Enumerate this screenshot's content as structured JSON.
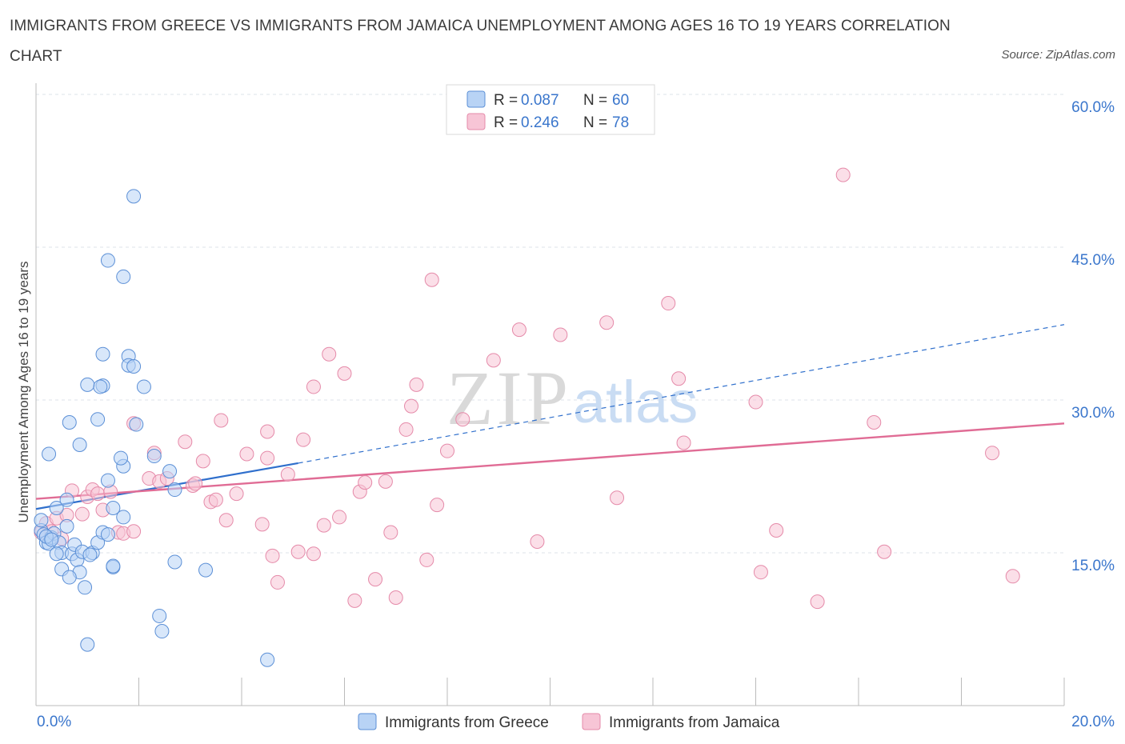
{
  "title": "IMMIGRANTS FROM GREECE VS IMMIGRANTS FROM JAMAICA UNEMPLOYMENT AMONG AGES 16 TO 19 YEARS CORRELATION CHART",
  "source": "Source: ZipAtlas.com",
  "watermark": {
    "zip": "ZIP",
    "atlas": "atlas"
  },
  "colors": {
    "greece_fill": "#b8d3f5",
    "greece_stroke": "#5b8fd6",
    "greece_line": "#2f6fcc",
    "jamaica_fill": "#f7c5d6",
    "jamaica_stroke": "#e58aa9",
    "jamaica_line": "#e06c95",
    "axis_text": "#3a76cc",
    "grid": "#dde3ea"
  },
  "chart_data": {
    "type": "scatter",
    "title": "IMMIGRANTS FROM GREECE VS IMMIGRANTS FROM JAMAICA UNEMPLOYMENT AMONG AGES 16 TO 19 YEARS CORRELATION CHART",
    "xlabel": "",
    "ylabel": "Unemployment Among Ages 16 to 19 years",
    "xlim": [
      0,
      20
    ],
    "ylim": [
      0,
      60
    ],
    "x_tick_labels": [
      "0.0%",
      "20.0%"
    ],
    "y_ticks": [
      15,
      30,
      45,
      60
    ],
    "y_tick_labels": [
      "15.0%",
      "30.0%",
      "45.0%",
      "60.0%"
    ],
    "legend_position": "top-center",
    "legend": [
      {
        "r_label": "R =",
        "r_value": "0.087",
        "n_label": "N =",
        "n_value": "60"
      },
      {
        "r_label": "R =",
        "r_value": "0.246",
        "n_label": "N =",
        "n_value": "78"
      }
    ],
    "bottom_legend": [
      "Immigrants from Greece",
      "Immigrants from Jamaica"
    ],
    "series": [
      {
        "name": "Immigrants from Greece",
        "trend": {
          "x0": 0,
          "y0": 19.3,
          "x1": 5.1,
          "y1": 23.8,
          "dashed_to_x": 20,
          "dashed_to_y": 37.4
        },
        "points": [
          [
            0.1,
            17.2
          ],
          [
            0.15,
            16.8
          ],
          [
            0.2,
            16.0
          ],
          [
            0.25,
            15.9
          ],
          [
            0.1,
            18.2
          ],
          [
            0.3,
            16.5
          ],
          [
            0.35,
            16.9
          ],
          [
            0.2,
            16.6
          ],
          [
            0.4,
            19.4
          ],
          [
            0.45,
            16.0
          ],
          [
            0.5,
            15.0
          ],
          [
            0.6,
            20.2
          ],
          [
            0.6,
            17.6
          ],
          [
            0.7,
            14.9
          ],
          [
            0.75,
            15.8
          ],
          [
            0.8,
            14.3
          ],
          [
            0.85,
            13.1
          ],
          [
            0.9,
            15.1
          ],
          [
            0.5,
            13.4
          ],
          [
            0.4,
            14.9
          ],
          [
            0.65,
            12.6
          ],
          [
            0.95,
            11.6
          ],
          [
            1.1,
            15.0
          ],
          [
            1.2,
            16.0
          ],
          [
            1.3,
            17.0
          ],
          [
            1.4,
            16.8
          ],
          [
            1.5,
            13.6
          ],
          [
            1.5,
            13.7
          ],
          [
            1.7,
            18.5
          ],
          [
            1.7,
            23.5
          ],
          [
            1.65,
            24.3
          ],
          [
            1.5,
            19.4
          ],
          [
            1.4,
            22.1
          ],
          [
            1.2,
            28.1
          ],
          [
            1.3,
            31.4
          ],
          [
            1.25,
            31.3
          ],
          [
            1.0,
            31.5
          ],
          [
            0.85,
            25.6
          ],
          [
            0.65,
            27.8
          ],
          [
            0.25,
            24.7
          ],
          [
            1.3,
            34.5
          ],
          [
            1.8,
            34.3
          ],
          [
            1.8,
            33.4
          ],
          [
            1.9,
            33.3
          ],
          [
            2.1,
            31.3
          ],
          [
            1.95,
            27.6
          ],
          [
            2.3,
            24.5
          ],
          [
            2.6,
            23.0
          ],
          [
            2.7,
            21.2
          ],
          [
            2.7,
            14.1
          ],
          [
            3.3,
            13.3
          ],
          [
            2.4,
            8.8
          ],
          [
            2.45,
            7.3
          ],
          [
            1.0,
            6.0
          ],
          [
            4.5,
            4.5
          ],
          [
            1.4,
            43.7
          ],
          [
            1.7,
            42.1
          ],
          [
            1.9,
            50.0
          ],
          [
            0.3,
            16.3
          ],
          [
            1.05,
            14.8
          ]
        ]
      },
      {
        "name": "Immigrants from Jamaica",
        "trend": {
          "x0": 0,
          "y0": 20.3,
          "x1": 20,
          "y1": 27.7
        },
        "points": [
          [
            0.1,
            17.0
          ],
          [
            0.2,
            17.9
          ],
          [
            0.3,
            17.1
          ],
          [
            0.4,
            18.4
          ],
          [
            0.5,
            16.4
          ],
          [
            0.6,
            18.7
          ],
          [
            0.7,
            21.1
          ],
          [
            0.9,
            18.8
          ],
          [
            1.0,
            20.5
          ],
          [
            1.1,
            21.2
          ],
          [
            1.2,
            20.8
          ],
          [
            1.3,
            19.2
          ],
          [
            1.45,
            21.0
          ],
          [
            1.6,
            17.0
          ],
          [
            1.7,
            16.9
          ],
          [
            1.9,
            17.1
          ],
          [
            1.9,
            27.7
          ],
          [
            2.2,
            22.3
          ],
          [
            2.3,
            24.8
          ],
          [
            2.4,
            22.0
          ],
          [
            2.55,
            22.3
          ],
          [
            2.9,
            25.9
          ],
          [
            3.05,
            21.6
          ],
          [
            3.1,
            21.8
          ],
          [
            3.25,
            24.0
          ],
          [
            3.4,
            20.0
          ],
          [
            3.5,
            20.2
          ],
          [
            3.6,
            28.0
          ],
          [
            3.7,
            18.2
          ],
          [
            3.9,
            20.8
          ],
          [
            4.1,
            24.7
          ],
          [
            4.4,
            17.8
          ],
          [
            4.5,
            24.3
          ],
          [
            4.5,
            26.9
          ],
          [
            4.6,
            14.7
          ],
          [
            4.7,
            12.1
          ],
          [
            4.9,
            22.7
          ],
          [
            5.1,
            15.1
          ],
          [
            5.2,
            26.1
          ],
          [
            5.4,
            31.3
          ],
          [
            5.4,
            14.9
          ],
          [
            5.6,
            17.7
          ],
          [
            5.7,
            34.5
          ],
          [
            5.9,
            18.5
          ],
          [
            6.0,
            32.6
          ],
          [
            6.2,
            10.3
          ],
          [
            6.3,
            21.0
          ],
          [
            6.4,
            21.9
          ],
          [
            6.6,
            12.4
          ],
          [
            6.8,
            22.0
          ],
          [
            6.9,
            17.0
          ],
          [
            7.0,
            10.6
          ],
          [
            7.2,
            27.1
          ],
          [
            7.3,
            29.4
          ],
          [
            7.4,
            31.5
          ],
          [
            7.6,
            14.3
          ],
          [
            7.7,
            41.8
          ],
          [
            7.8,
            19.7
          ],
          [
            8.0,
            25.0
          ],
          [
            8.3,
            28.1
          ],
          [
            8.9,
            33.9
          ],
          [
            9.4,
            36.9
          ],
          [
            9.75,
            16.1
          ],
          [
            10.2,
            36.4
          ],
          [
            11.1,
            37.6
          ],
          [
            11.3,
            20.4
          ],
          [
            12.3,
            39.5
          ],
          [
            12.5,
            32.1
          ],
          [
            12.6,
            25.8
          ],
          [
            14.0,
            29.8
          ],
          [
            14.1,
            13.1
          ],
          [
            14.4,
            17.2
          ],
          [
            15.2,
            10.2
          ],
          [
            15.7,
            52.1
          ],
          [
            16.3,
            27.8
          ],
          [
            16.5,
            15.1
          ],
          [
            18.6,
            24.8
          ],
          [
            19.0,
            12.7
          ]
        ]
      }
    ]
  }
}
